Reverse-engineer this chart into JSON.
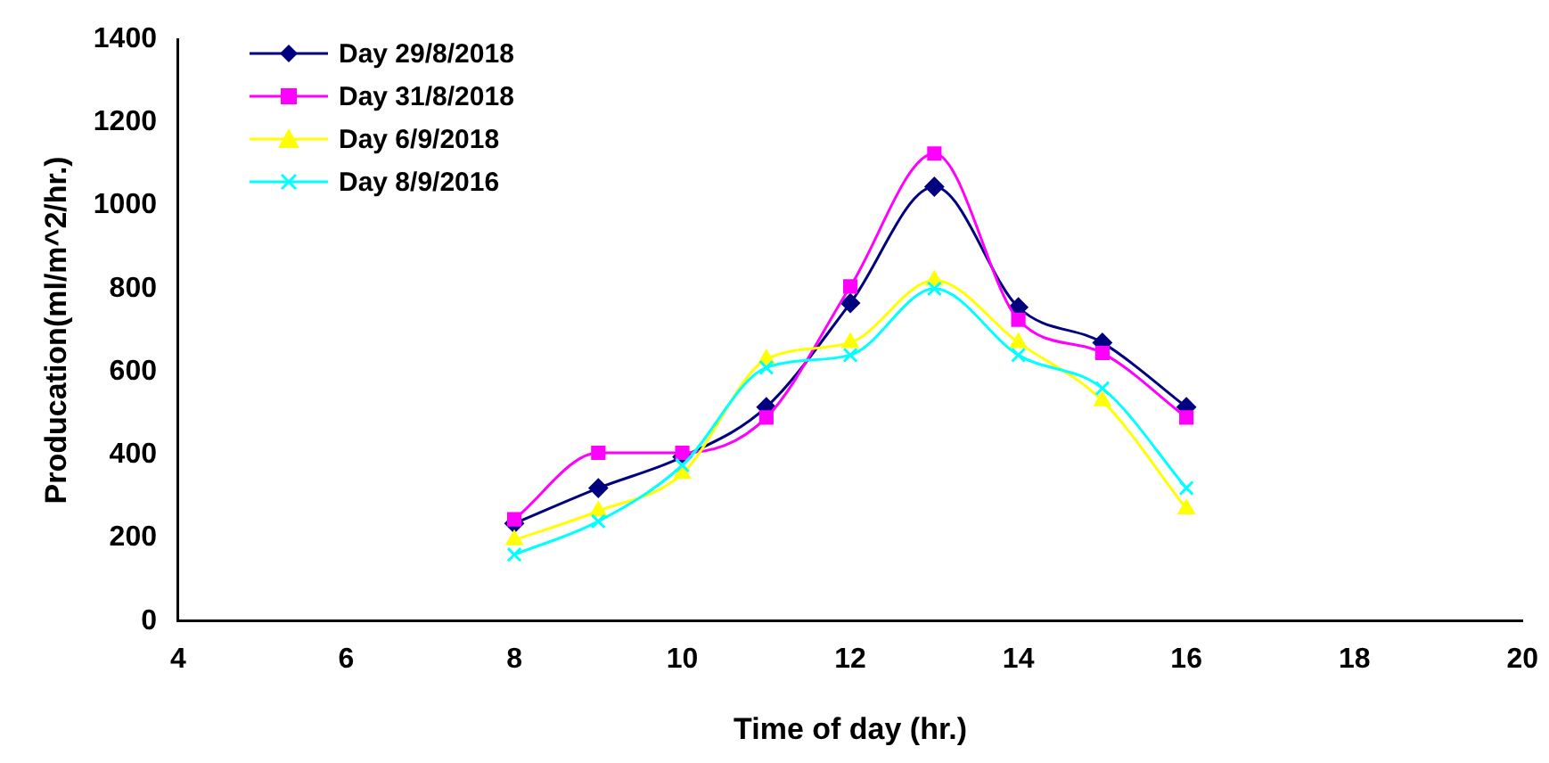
{
  "chart_data": {
    "type": "line",
    "xlabel": "Time of day (hr.)",
    "ylabel": "Producation(ml/m^2/hr.)",
    "x": [
      8,
      9,
      10,
      11,
      12,
      13,
      14,
      15,
      16
    ],
    "series": [
      {
        "name": "Day 29/8/2018",
        "color": "#000080",
        "marker": "diamond",
        "values": [
          235,
          320,
          395,
          515,
          765,
          1045,
          755,
          670,
          515
        ]
      },
      {
        "name": "Day 31/8/2018",
        "color": "#ff00ff",
        "marker": "square",
        "values": [
          245,
          405,
          405,
          490,
          805,
          1125,
          725,
          645,
          490
        ]
      },
      {
        "name": "Day 6/9/2018",
        "color": "#ffff00",
        "marker": "triangle",
        "values": [
          195,
          265,
          355,
          630,
          670,
          820,
          670,
          530,
          270
        ]
      },
      {
        "name": "Day 8/9/2016",
        "color": "#00ffff",
        "marker": "cross",
        "values": [
          160,
          240,
          375,
          610,
          640,
          800,
          640,
          560,
          320
        ]
      }
    ],
    "xlim": [
      4,
      20
    ],
    "xticks": [
      4,
      6,
      8,
      10,
      12,
      14,
      16,
      18,
      20
    ],
    "ylim": [
      0,
      1400
    ],
    "yticks": [
      0,
      200,
      400,
      600,
      800,
      1000,
      1200,
      1400
    ],
    "grid": false,
    "legend": "top left",
    "line_style": "solid"
  }
}
